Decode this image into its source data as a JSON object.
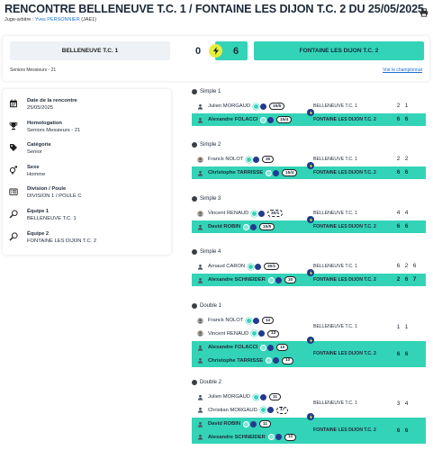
{
  "header": {
    "title": "RENCONTRE BELLENEUVE T.C. 1 / FONTAINE LES DIJON T.C. 2 DU 25/05/2025",
    "referee_label": "Juge-arbitre : ",
    "referee_name": "Yves PERSONNIER",
    "referee_code": "(JAE1)",
    "print_icon": "printer-icon"
  },
  "score": {
    "home_team": "BELLENEUVE T.C. 1",
    "home_score": "0",
    "away_score": "6",
    "away_team": "FONTAINE LES DIJON T.C. 2",
    "category": "Seniors Messieurs - 21",
    "championship_link": "Voir le championnat"
  },
  "info": [
    {
      "icon": "calendar-icon",
      "label": "Date de la rencontre",
      "value": "25/05/2025"
    },
    {
      "icon": "trophy-icon",
      "label": "Homologation",
      "value": "Seniors Messieurs - 21"
    },
    {
      "icon": "tag-icon",
      "label": "Catégorie",
      "value": "Senior"
    },
    {
      "icon": "gender-icon",
      "label": "Sexe",
      "value": "Homme"
    },
    {
      "icon": "division-icon",
      "label": "Division / Poule",
      "value": "DIVISION 1 / POULE C"
    },
    {
      "icon": "racket-icon",
      "label": "Équipe 1",
      "value": "BELLENEUVE T.C. 1"
    },
    {
      "icon": "racket-icon",
      "label": "Équipe 2",
      "value": "FONTAINE LES DIJON T.C. 2"
    }
  ],
  "matches": [
    {
      "title": "Simple 1",
      "rows": [
        {
          "players": [
            {
              "name": "Julien MORGAUD",
              "rank": "15/5",
              "dashed": false,
              "icon": "user-icon"
            }
          ],
          "team": "BELLENEUVE T.C. 1",
          "sets": [
            "2",
            "1"
          ],
          "win": false
        },
        {
          "players": [
            {
              "name": "Alexandre FOLACCI",
              "rank": "15/4",
              "dashed": false,
              "icon": "user-icon"
            }
          ],
          "team": "FONTAINE LES DIJON T.C. 2",
          "sets": [
            "6",
            "6"
          ],
          "win": true
        }
      ]
    },
    {
      "title": "Simple 2",
      "rows": [
        {
          "players": [
            {
              "name": "Franck NOLOT",
              "rank": "30",
              "dashed": false,
              "icon": "avatar-icon"
            }
          ],
          "team": "BELLENEUVE T.C. 1",
          "sets": [
            "2",
            "2"
          ],
          "win": false
        },
        {
          "players": [
            {
              "name": "Christophe TARRISSE",
              "rank": "15/4",
              "dashed": false,
              "icon": "user-icon"
            }
          ],
          "team": "FONTAINE LES DIJON T.C. 2",
          "sets": [
            "6",
            "6"
          ],
          "win": true
        }
      ]
    },
    {
      "title": "Simple 3",
      "rows": [
        {
          "players": [
            {
              "name": "Vincent RENAUD",
              "rank": "30/1",
              "dashed": true,
              "icon": "avatar-icon"
            }
          ],
          "team": "BELLENEUVE T.C. 1",
          "sets": [
            "4",
            "4"
          ],
          "win": false
        },
        {
          "players": [
            {
              "name": "David ROBIN",
              "rank": "15/5",
              "dashed": false,
              "icon": "user-icon"
            }
          ],
          "team": "FONTAINE LES DIJON T.C. 2",
          "sets": [
            "6",
            "6"
          ],
          "win": true
        }
      ]
    },
    {
      "title": "Simple 4",
      "rows": [
        {
          "players": [
            {
              "name": "Arnaud CARON",
              "rank": "30/1",
              "dashed": false,
              "icon": "user-icon"
            }
          ],
          "team": "BELLENEUVE T.C. 1",
          "sets": [
            "6",
            "2",
            "6"
          ],
          "win": false
        },
        {
          "players": [
            {
              "name": "Alexandre SCHNEIDER",
              "rank": "30",
              "dashed": false,
              "icon": "user-icon"
            }
          ],
          "team": "FONTAINE LES DIJON T.C. 2",
          "sets": [
            "2",
            "6",
            "7"
          ],
          "win": true
        }
      ]
    },
    {
      "title": "Double 1",
      "rows": [
        {
          "players": [
            {
              "name": "Franck NOLOT",
              "rank": "12",
              "dashed": false,
              "icon": "avatar-icon"
            },
            {
              "name": "Vincent RENAUD",
              "rank": "13",
              "dashed": false,
              "icon": "avatar-icon"
            }
          ],
          "team": "BELLENEUVE T.C. 1",
          "sets": [
            "1",
            "1"
          ],
          "win": false
        },
        {
          "players": [
            {
              "name": "Alexandre FOLACCI",
              "rank": "10",
              "dashed": false,
              "icon": "user-icon"
            },
            {
              "name": "Christophe TARRISSE",
              "rank": "10",
              "dashed": false,
              "icon": "user-icon"
            }
          ],
          "team": "FONTAINE LES DIJON T.C. 2",
          "sets": [
            "6",
            "6"
          ],
          "win": true
        }
      ]
    },
    {
      "title": "Double 2",
      "rows": [
        {
          "players": [
            {
              "name": "Julien MORGAUD",
              "rank": "11",
              "dashed": false,
              "icon": "user-icon"
            },
            {
              "name": "Christian MORGAUD",
              "rank": "17",
              "dashed": true,
              "icon": "user-icon"
            }
          ],
          "team": "BELLENEUVE T.C. 1",
          "sets": [
            "3",
            "4"
          ],
          "win": false
        },
        {
          "players": [
            {
              "name": "David ROBIN",
              "rank": "11",
              "dashed": false,
              "icon": "user-icon"
            },
            {
              "name": "Alexandre SCHNEIDER",
              "rank": "12",
              "dashed": false,
              "icon": "user-icon"
            }
          ],
          "team": "FONTAINE LES DIJON T.C. 2",
          "sets": [
            "6",
            "6"
          ],
          "win": true
        }
      ]
    }
  ]
}
